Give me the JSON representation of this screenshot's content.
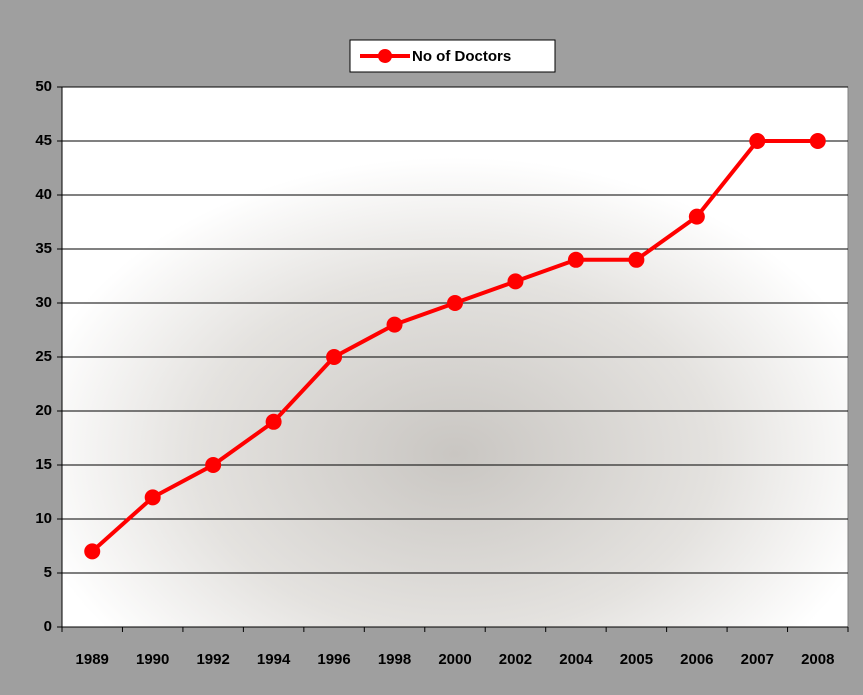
{
  "chart_data": {
    "type": "line",
    "categories": [
      "1989",
      "1990",
      "1992",
      "1994",
      "1996",
      "1998",
      "2000",
      "2002",
      "2004",
      "2005",
      "2006",
      "2007",
      "2008"
    ],
    "series": [
      {
        "name": "No of Doctors",
        "color": "#ff0000",
        "values": [
          7,
          12,
          15,
          19,
          25,
          28,
          30,
          32,
          34,
          34,
          38,
          45,
          45
        ]
      }
    ],
    "ylim": [
      0,
      50
    ],
    "yticks": [
      0,
      5,
      10,
      15,
      20,
      25,
      30,
      35,
      40,
      45,
      50
    ],
    "grid": true,
    "legend": "top"
  }
}
